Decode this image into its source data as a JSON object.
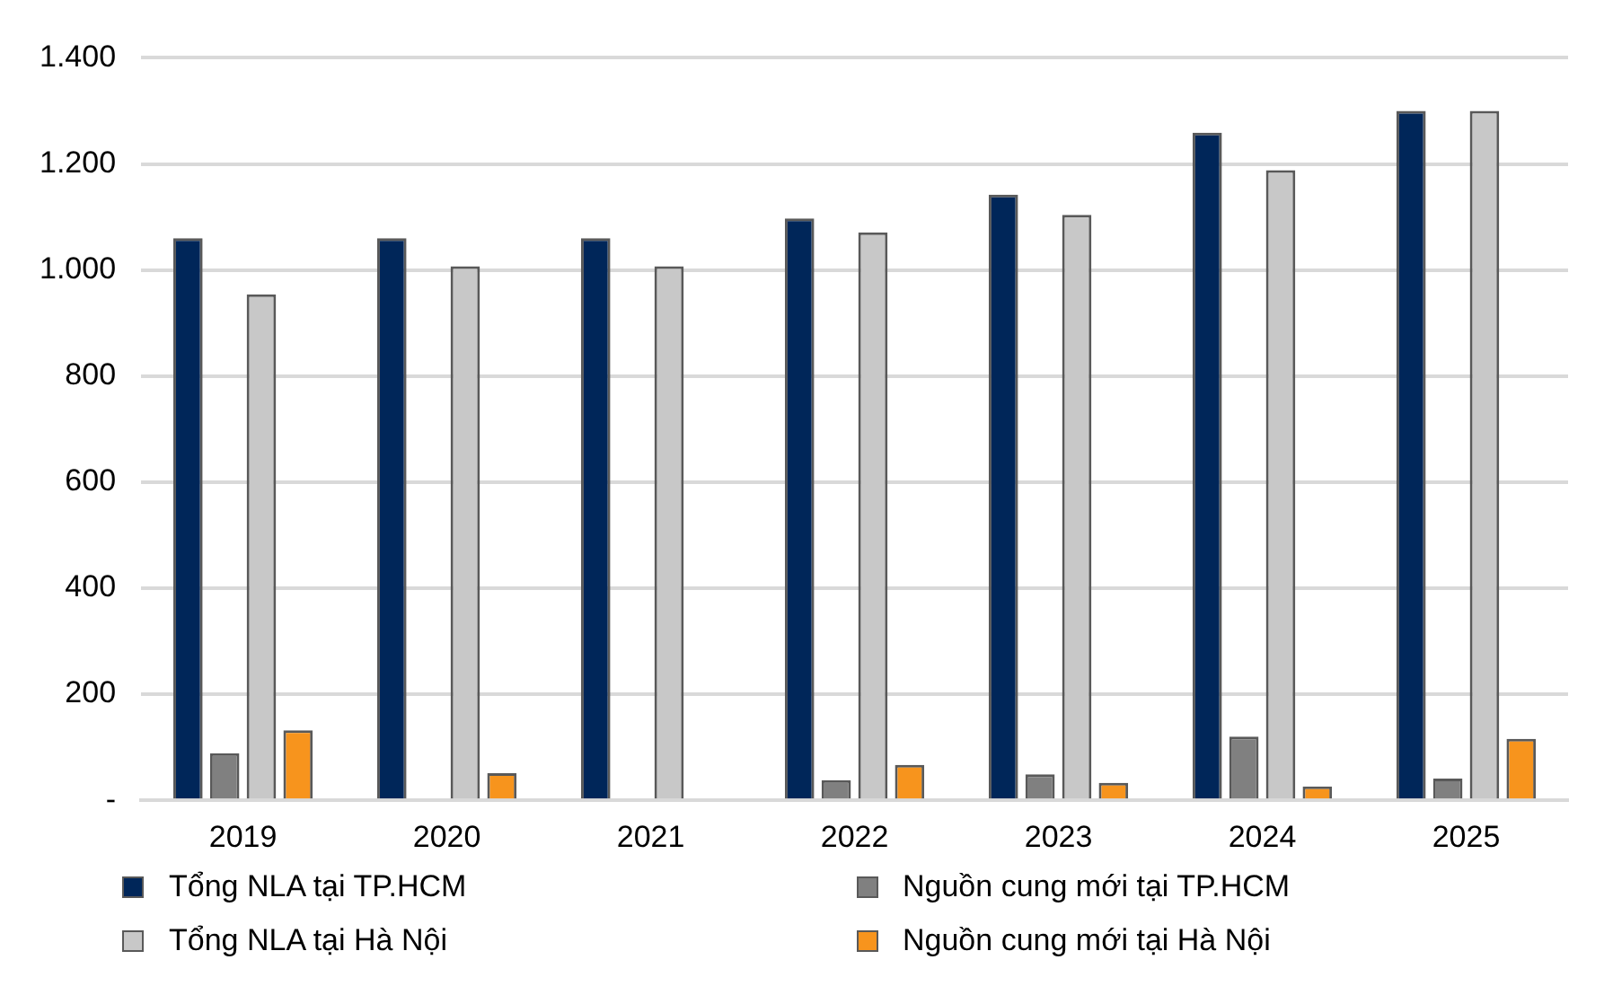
{
  "chart_data": {
    "type": "bar",
    "categories": [
      "2019",
      "2020",
      "2021",
      "2022",
      "2023",
      "2024",
      "2025"
    ],
    "series": [
      {
        "name": "Tổng NLA tại TP.HCM",
        "color": "#002659",
        "values": [
          1060,
          1060,
          1060,
          1097,
          1142,
          1259,
          1300
        ]
      },
      {
        "name": "Nguồn cung mới tại TP.HCM",
        "color": "#808080",
        "values": [
          89,
          null,
          null,
          38,
          49,
          120,
          41
        ]
      },
      {
        "name": "Tổng NLA tại Hà Nội",
        "color": "#c8c8c8",
        "values": [
          954,
          1007,
          1007,
          1071,
          1104,
          1188,
          1300
        ]
      },
      {
        "name": "Nguồn cung mới tại Hà Nội",
        "color": "#f7941d",
        "values": [
          132,
          51,
          null,
          67,
          33,
          26,
          116
        ]
      }
    ],
    "ylim": [
      0,
      1400
    ],
    "yticks": [
      {
        "value": 0,
        "label": "-"
      },
      {
        "value": 200,
        "label": "200"
      },
      {
        "value": 400,
        "label": "400"
      },
      {
        "value": 600,
        "label": "600"
      },
      {
        "value": 800,
        "label": "800"
      },
      {
        "value": 1000,
        "label": "1.000"
      },
      {
        "value": 1200,
        "label": "1.200"
      },
      {
        "value": 1400,
        "label": "1.400"
      }
    ],
    "grid": "y",
    "legend": "bottom"
  }
}
